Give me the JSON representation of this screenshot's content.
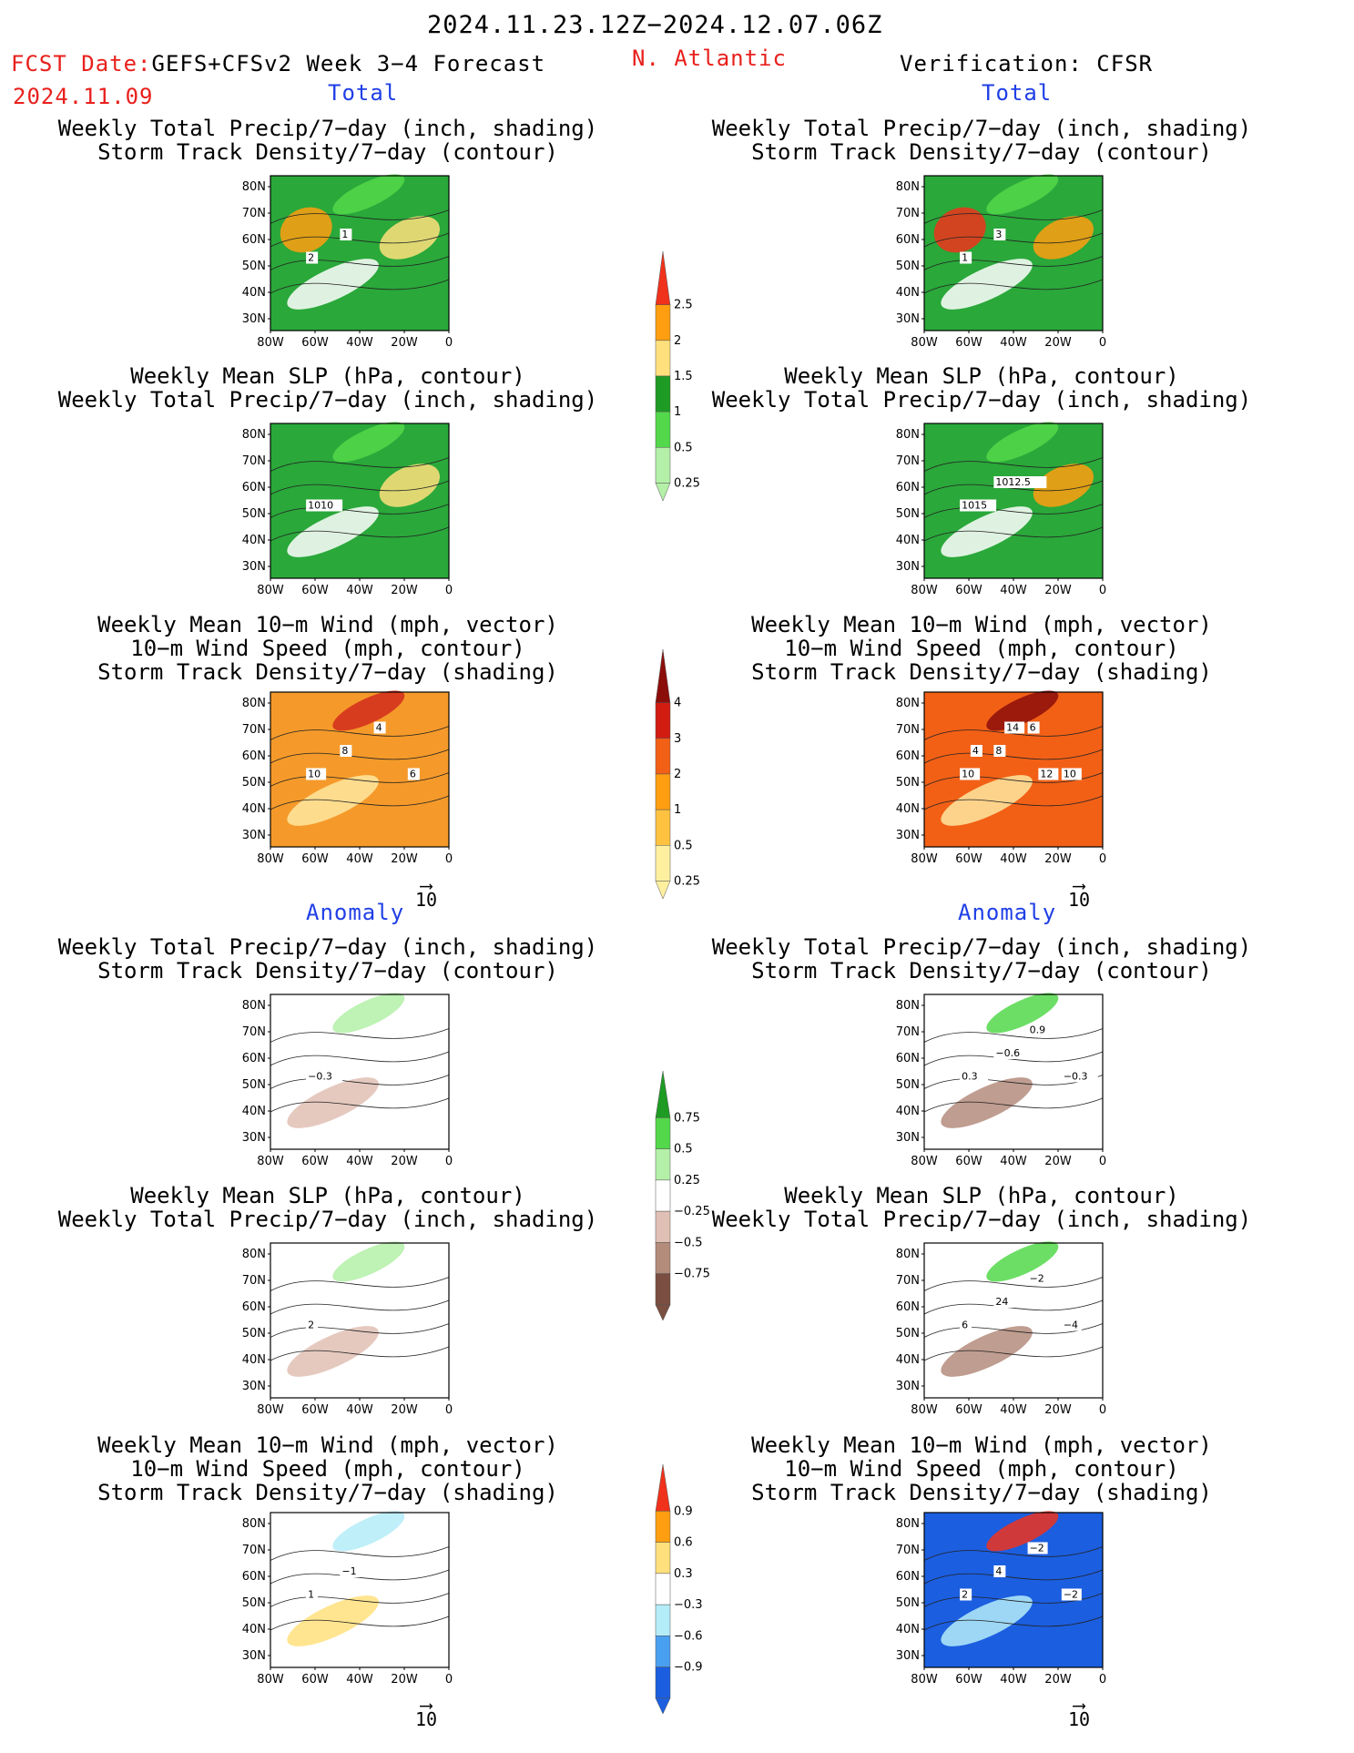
{
  "header": {
    "period": "2024.11.23.12Z−2024.12.07.06Z",
    "fcst_prefix": "FCST Date:",
    "model": "GEFS+CFSv2 Week 3−4 Forecast",
    "fcst_date": "2024.11.09",
    "region": "N. Atlantic",
    "verification": "Verification: CFSR"
  },
  "sections": {
    "total": "Total",
    "anomaly": "Anomaly"
  },
  "vector_ref": "10",
  "panel_titles": {
    "precip_storm": [
      "Weekly Total Precip/7−day (inch, shading)",
      "Storm Track Density/7−day (contour)"
    ],
    "slp_precip": [
      "Weekly Mean SLP (hPa, contour)",
      "Weekly Total Precip/7−day (inch, shading)"
    ],
    "wind_storm": [
      "Weekly Mean 10−m Wind (mph, vector)",
      "10−m Wind Speed (mph, contour)",
      "Storm Track Density/7−day (shading)"
    ]
  },
  "axes": {
    "lat_labels": [
      "80N",
      "70N",
      "60N",
      "50N",
      "40N",
      "30N"
    ],
    "lon_labels": [
      "80W",
      "60W",
      "40W",
      "20W",
      "0"
    ]
  },
  "colorbars": {
    "precip_total": {
      "labels": [
        "2.5",
        "2",
        "1.5",
        "1",
        "0.5",
        "0.25"
      ],
      "colors": [
        "#f0321c",
        "#ff9e10",
        "#ffe07c",
        "#1e9b22",
        "#52d84a",
        "#b4f0a8"
      ]
    },
    "storm_total": {
      "labels": [
        "4",
        "3",
        "2",
        "1",
        "0.5",
        "0.25"
      ],
      "colors": [
        "#8c0e0a",
        "#d21c12",
        "#f26016",
        "#ff9e10",
        "#ffc240",
        "#fff0a0"
      ]
    },
    "precip_anom": {
      "labels": [
        "0.75",
        "0.5",
        "0.25",
        "−0.25",
        "−0.5",
        "−0.75"
      ],
      "colors": [
        "#1e9b22",
        "#52d84a",
        "#b4f0a8",
        "#ffffff",
        "#e0c0b4",
        "#b48c7c",
        "#7a4e40"
      ]
    },
    "storm_anom": {
      "labels": [
        "0.9",
        "0.6",
        "0.3",
        "−0.3",
        "−0.6",
        "−0.9"
      ],
      "colors": [
        "#f0321c",
        "#ff9e10",
        "#ffe07c",
        "#ffffff",
        "#b4ecf8",
        "#4aa0f0",
        "#1b5ee0"
      ]
    }
  },
  "panels": [
    {
      "id": "fc-total-precip-storm",
      "contour_labels": [
        "2",
        "1"
      ],
      "colors": {
        "bg": "#2aa83a",
        "land": "#52d84a",
        "snow": "#ffffff",
        "hot": "#ffe07c",
        "hot2": "#ff9e10"
      }
    },
    {
      "id": "fc-total-slp-precip",
      "contour_labels": [
        "1010"
      ],
      "colors": {
        "bg": "#2aa83a",
        "land": "#52d84a",
        "snow": "#ffffff",
        "hot": "#ffe07c"
      }
    },
    {
      "id": "fc-total-wind-storm",
      "contour_labels": [
        "10",
        "8",
        "4",
        "6"
      ],
      "colors": {
        "bg": "#f59a2a",
        "hot": "#d22c1c",
        "cool": "#ffe7a0"
      }
    },
    {
      "id": "fc-anom-precip-storm",
      "contour_labels": [
        "−0.3"
      ],
      "colors": {
        "bg": "#ffffff",
        "green": "#b4f0a8",
        "brown": "#e0c0b4"
      }
    },
    {
      "id": "fc-anom-slp-precip",
      "contour_labels": [
        "2"
      ],
      "colors": {
        "bg": "#ffffff",
        "green": "#b4f0a8",
        "brown": "#e0c0b4"
      }
    },
    {
      "id": "fc-anom-wind-storm",
      "contour_labels": [
        "1",
        "−1"
      ],
      "colors": {
        "bg": "#ffffff",
        "blue": "#b4ecf8",
        "orange": "#ffe07c"
      }
    },
    {
      "id": "vf-total-precip-storm",
      "contour_labels": [
        "1",
        "3"
      ],
      "colors": {
        "bg": "#2aa83a",
        "land": "#52d84a",
        "snow": "#ffffff",
        "hot": "#ff9e10",
        "hot2": "#f0321c"
      }
    },
    {
      "id": "vf-total-slp-precip",
      "contour_labels": [
        "1015",
        "1012.5"
      ],
      "colors": {
        "bg": "#2aa83a",
        "land": "#52d84a",
        "snow": "#ffffff",
        "hot": "#ff9e10"
      }
    },
    {
      "id": "vf-total-wind-storm",
      "contour_labels": [
        "10",
        "8",
        "6",
        "10",
        "4",
        "14",
        "12"
      ],
      "colors": {
        "bg": "#f26016",
        "hot": "#8c0e0a",
        "cool": "#ffe7a0"
      }
    },
    {
      "id": "vf-anom-precip-storm",
      "contour_labels": [
        "0.3",
        "−0.6",
        "0.9",
        "−0.3"
      ],
      "colors": {
        "bg": "#ffffff",
        "green": "#52d84a",
        "brown": "#b48c7c"
      }
    },
    {
      "id": "vf-anom-slp-precip",
      "contour_labels": [
        "6",
        "24",
        "−2",
        "−4"
      ],
      "colors": {
        "bg": "#ffffff",
        "green": "#52d84a",
        "brown": "#b48c7c"
      }
    },
    {
      "id": "vf-anom-wind-storm",
      "contour_labels": [
        "2",
        "4",
        "−2",
        "−2"
      ],
      "colors": {
        "bg": "#1b5ee0",
        "hot": "#f0321c",
        "mid": "#b4ecf8"
      }
    }
  ],
  "chart_data": [
    {
      "type": "heatmap",
      "title": "Weekly Total Precip/7−day (inch, shading) / Storm Track Density/7−day (contour)",
      "source": "GEFS+CFSv2",
      "section": "Total",
      "x": [
        "80W",
        "60W",
        "40W",
        "20W",
        "0"
      ],
      "y": [
        "30N",
        "40N",
        "50N",
        "60N",
        "70N",
        "80N"
      ],
      "contour_labels": [
        "2",
        "1"
      ],
      "shading_levels": [
        0.25,
        0.5,
        1,
        1.5,
        2,
        2.5
      ]
    },
    {
      "type": "heatmap",
      "title": "Weekly Mean SLP (hPa, contour) / Weekly Total Precip/7−day (inch, shading)",
      "source": "GEFS+CFSv2",
      "section": "Total",
      "x": [
        "80W",
        "60W",
        "40W",
        "20W",
        "0"
      ],
      "y": [
        "30N",
        "40N",
        "50N",
        "60N",
        "70N",
        "80N"
      ],
      "contour_labels": [
        "1010"
      ],
      "shading_levels": [
        0.25,
        0.5,
        1,
        1.5,
        2,
        2.5
      ]
    },
    {
      "type": "heatmap",
      "title": "Weekly Mean 10−m Wind (mph, vector) / 10−m Wind Speed (mph, contour) / Storm Track Density/7−day (shading)",
      "source": "GEFS+CFSv2",
      "section": "Total",
      "x": [
        "80W",
        "60W",
        "40W",
        "20W",
        "0"
      ],
      "y": [
        "30N",
        "40N",
        "50N",
        "60N",
        "70N",
        "80N"
      ],
      "contour_labels": [
        "10",
        "8",
        "4",
        "6"
      ],
      "shading_levels": [
        0.25,
        0.5,
        1,
        2,
        3,
        4
      ]
    },
    {
      "type": "heatmap",
      "title": "Weekly Total Precip/7−day (inch, shading) / Storm Track Density/7−day (contour)",
      "source": "GEFS+CFSv2",
      "section": "Anomaly",
      "x": [
        "80W",
        "60W",
        "40W",
        "20W",
        "0"
      ],
      "y": [
        "30N",
        "40N",
        "50N",
        "60N",
        "70N",
        "80N"
      ],
      "contour_labels": [
        "−0.3"
      ],
      "shading_levels": [
        -0.75,
        -0.5,
        -0.25,
        0.25,
        0.5,
        0.75
      ]
    },
    {
      "type": "heatmap",
      "title": "Weekly Mean SLP (hPa, contour) / Weekly Total Precip/7−day (inch, shading)",
      "source": "GEFS+CFSv2",
      "section": "Anomaly",
      "x": [
        "80W",
        "60W",
        "40W",
        "20W",
        "0"
      ],
      "y": [
        "30N",
        "40N",
        "50N",
        "60N",
        "70N",
        "80N"
      ],
      "contour_labels": [
        "2"
      ],
      "shading_levels": [
        -0.75,
        -0.5,
        -0.25,
        0.25,
        0.5,
        0.75
      ]
    },
    {
      "type": "heatmap",
      "title": "Weekly Mean 10−m Wind (mph, vector) / 10−m Wind Speed (mph, contour) / Storm Track Density/7−day (shading)",
      "source": "GEFS+CFSv2",
      "section": "Anomaly",
      "x": [
        "80W",
        "60W",
        "40W",
        "20W",
        "0"
      ],
      "y": [
        "30N",
        "40N",
        "50N",
        "60N",
        "70N",
        "80N"
      ],
      "contour_labels": [
        "1",
        "−1"
      ],
      "shading_levels": [
        -0.9,
        -0.6,
        -0.3,
        0.3,
        0.6,
        0.9
      ]
    },
    {
      "type": "heatmap",
      "title": "Weekly Total Precip/7−day (inch, shading) / Storm Track Density/7−day (contour)",
      "source": "CFSR",
      "section": "Total",
      "x": [
        "80W",
        "60W",
        "40W",
        "20W",
        "0"
      ],
      "y": [
        "30N",
        "40N",
        "50N",
        "60N",
        "70N",
        "80N"
      ],
      "contour_labels": [
        "1",
        "3"
      ],
      "shading_levels": [
        0.25,
        0.5,
        1,
        1.5,
        2,
        2.5
      ]
    },
    {
      "type": "heatmap",
      "title": "Weekly Mean SLP (hPa, contour) / Weekly Total Precip/7−day (inch, shading)",
      "source": "CFSR",
      "section": "Total",
      "x": [
        "80W",
        "60W",
        "40W",
        "20W",
        "0"
      ],
      "y": [
        "30N",
        "40N",
        "50N",
        "60N",
        "70N",
        "80N"
      ],
      "contour_labels": [
        "1015",
        "1012.5"
      ],
      "shading_levels": [
        0.25,
        0.5,
        1,
        1.5,
        2,
        2.5
      ]
    },
    {
      "type": "heatmap",
      "title": "Weekly Mean 10−m Wind (mph, vector) / 10−m Wind Speed (mph, contour) / Storm Track Density/7−day (shading)",
      "source": "CFSR",
      "section": "Total",
      "x": [
        "80W",
        "60W",
        "40W",
        "20W",
        "0"
      ],
      "y": [
        "30N",
        "40N",
        "50N",
        "60N",
        "70N",
        "80N"
      ],
      "contour_labels": [
        "10",
        "8",
        "6",
        "10",
        "4",
        "14",
        "12"
      ],
      "shading_levels": [
        0.25,
        0.5,
        1,
        2,
        3,
        4
      ]
    },
    {
      "type": "heatmap",
      "title": "Weekly Total Precip/7−day (inch, shading) / Storm Track Density/7−day (contour)",
      "source": "CFSR",
      "section": "Anomaly",
      "x": [
        "80W",
        "60W",
        "40W",
        "20W",
        "0"
      ],
      "y": [
        "30N",
        "40N",
        "50N",
        "60N",
        "70N",
        "80N"
      ],
      "contour_labels": [
        "0.3",
        "−0.6",
        "0.9",
        "−0.3"
      ],
      "shading_levels": [
        -0.75,
        -0.5,
        -0.25,
        0.25,
        0.5,
        0.75
      ]
    },
    {
      "type": "heatmap",
      "title": "Weekly Mean SLP (hPa, contour) / Weekly Total Precip/7−day (inch, shading)",
      "source": "CFSR",
      "section": "Anomaly",
      "x": [
        "80W",
        "60W",
        "40W",
        "20W",
        "0"
      ],
      "y": [
        "30N",
        "40N",
        "50N",
        "60N",
        "70N",
        "80N"
      ],
      "contour_labels": [
        "6",
        "24",
        "−2",
        "−4"
      ],
      "shading_levels": [
        -0.75,
        -0.5,
        -0.25,
        0.25,
        0.5,
        0.75
      ]
    },
    {
      "type": "heatmap",
      "title": "Weekly Mean 10−m Wind (mph, vector) / 10−m Wind Speed (mph, contour) / Storm Track Density/7−day (shading)",
      "source": "CFSR",
      "section": "Anomaly",
      "x": [
        "80W",
        "60W",
        "40W",
        "20W",
        "0"
      ],
      "y": [
        "30N",
        "40N",
        "50N",
        "60N",
        "70N",
        "80N"
      ],
      "contour_labels": [
        "2",
        "4",
        "−2",
        "−2"
      ],
      "shading_levels": [
        -0.9,
        -0.6,
        -0.3,
        0.3,
        0.6,
        0.9
      ]
    }
  ]
}
